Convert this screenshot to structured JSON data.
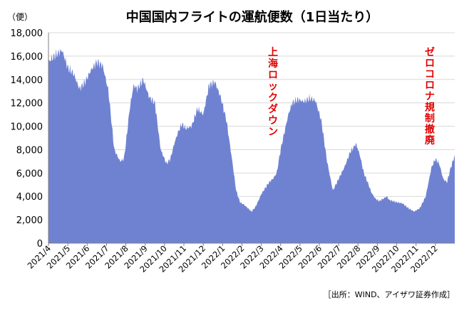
{
  "chart_data": {
    "type": "area",
    "title": "中国国内フライトの運航便数（1日当たり）",
    "y_unit": "（便）",
    "ylim": [
      0,
      18000
    ],
    "y_ticks": [
      "0",
      "2,000",
      "4,000",
      "6,000",
      "8,000",
      "10,000",
      "12,000",
      "14,000",
      "16,000",
      "18,000"
    ],
    "y_tick_values": [
      0,
      2000,
      4000,
      6000,
      8000,
      10000,
      12000,
      14000,
      16000,
      18000
    ],
    "x_ticks": [
      "2021/4",
      "2021/5",
      "2021/6",
      "2021/7",
      "2021/8",
      "2021/9",
      "2021/10",
      "2021/11",
      "2021/12",
      "2022/1",
      "2022/2",
      "2022/3",
      "2022/4",
      "2022/5",
      "2022/6",
      "2022/7",
      "2022/8",
      "2022/9",
      "2022/10",
      "2022/11",
      "2022/12"
    ],
    "grid": true,
    "color": "#6f82d2",
    "series": [
      {
        "x_month": [
          0,
          0.3,
          0.7,
          1.0,
          1.3,
          1.6,
          1.9,
          2.2,
          2.5,
          2.8,
          3.1,
          3.4,
          3.7,
          3.9,
          4.0,
          4.2,
          4.4,
          4.6,
          4.9,
          5.2,
          5.5,
          5.8,
          6.1,
          6.3,
          6.5,
          6.7,
          6.9,
          7.1,
          7.4,
          7.7,
          8.0,
          8.3,
          8.6,
          8.9,
          9.2,
          9.5,
          9.7,
          9.9,
          10.1,
          10.3,
          10.5,
          10.7,
          10.9,
          11.0,
          11.2,
          11.4,
          11.6,
          11.8,
          12.0,
          12.2,
          12.4,
          12.6,
          12.9,
          13.2,
          13.5,
          13.8,
          14.1,
          14.4,
          14.7,
          15.0,
          15.3,
          15.6,
          15.9,
          16.1,
          16.3,
          16.5,
          16.7,
          16.9,
          17.1,
          17.3,
          17.5,
          17.6,
          17.8,
          18.0,
          18.3,
          18.6,
          18.9,
          19.2,
          19.5,
          19.8,
          20.0,
          20.2,
          20.4,
          20.6,
          20.8,
          21.0
        ],
        "y": [
          15500,
          16000,
          16500,
          15000,
          14500,
          13200,
          13800,
          14800,
          15500,
          15200,
          13000,
          8000,
          7000,
          7200,
          8500,
          11500,
          13500,
          13200,
          14000,
          12500,
          12000,
          8000,
          6800,
          7200,
          8500,
          9500,
          10200,
          9800,
          10000,
          11500,
          11000,
          13500,
          13800,
          12500,
          10500,
          7000,
          4500,
          3500,
          3300,
          3000,
          2700,
          3100,
          3800,
          4200,
          4700,
          5200,
          5500,
          6000,
          8000,
          9500,
          11000,
          12000,
          12300,
          12100,
          12400,
          12200,
          10500,
          7000,
          4500,
          5500,
          6500,
          7800,
          8500,
          7500,
          6000,
          5200,
          4300,
          3800,
          3600,
          3800,
          4000,
          3700,
          3600,
          3500,
          3400,
          3000,
          2700,
          3000,
          4000,
          6500,
          7200,
          6800,
          5500,
          5200,
          6500,
          7500
        ]
      }
    ],
    "annotations": [
      {
        "text": "上海ロックダウン"
      },
      {
        "text": "ゼロコロナ規制撤廃"
      }
    ],
    "source": "［出所：WIND、アイザワ証券作成］"
  }
}
